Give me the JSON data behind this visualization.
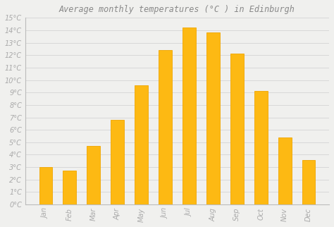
{
  "title": "Average monthly temperatures (°C ) in Edinburgh",
  "months": [
    "Jan",
    "Feb",
    "Mar",
    "Apr",
    "May",
    "Jun",
    "Jul",
    "Aug",
    "Sep",
    "Oct",
    "Nov",
    "Dec"
  ],
  "values": [
    3.0,
    2.7,
    4.7,
    6.8,
    9.6,
    12.4,
    14.2,
    13.8,
    12.1,
    9.1,
    5.4,
    3.6
  ],
  "ylim": [
    0,
    15
  ],
  "yticks": [
    0,
    1,
    2,
    3,
    4,
    5,
    6,
    7,
    8,
    9,
    10,
    11,
    12,
    13,
    14,
    15
  ],
  "background_color": "#f0f0ee",
  "grid_color": "#d8d8d8",
  "title_fontsize": 8.5,
  "tick_fontsize": 7,
  "bar_color_main": "#FDB913",
  "bar_color_edge": "#F0A500",
  "title_color": "#888888",
  "tick_color": "#aaaaaa"
}
